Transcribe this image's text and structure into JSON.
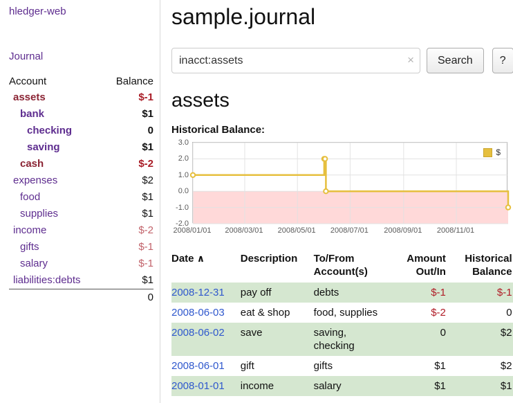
{
  "colors": {
    "purple": "#5e2d8f",
    "maroon": "#8b2434",
    "neg_strong": "#a91c26",
    "neg_soft": "#c2636b",
    "link_blue": "#2f58cd",
    "row_green": "#d5e7d0",
    "chart_line": "#e6bf3e",
    "chart_neg_fill": "#ffd9d9"
  },
  "sidebar": {
    "app_title": "hledger-web",
    "journal_link": "Journal",
    "accounts": {
      "headers": {
        "account": "Account",
        "balance": "Balance"
      },
      "rows": [
        {
          "name": "assets",
          "balance": "$-1",
          "indent": 0,
          "bold": true,
          "name_style": "maroon",
          "balance_style": "neg-strong"
        },
        {
          "name": "bank",
          "balance": "$1",
          "indent": 1,
          "bold": true,
          "name_style": "purple",
          "balance_style": "plain"
        },
        {
          "name": "checking",
          "balance": "0",
          "indent": 2,
          "bold": true,
          "name_style": "purple",
          "balance_style": "plain"
        },
        {
          "name": "saving",
          "balance": "$1",
          "indent": 2,
          "bold": true,
          "name_style": "purple",
          "balance_style": "plain"
        },
        {
          "name": "cash",
          "balance": "$-2",
          "indent": 1,
          "bold": true,
          "name_style": "maroon",
          "balance_style": "neg-strong"
        },
        {
          "name": "expenses",
          "balance": "$2",
          "indent": 0,
          "bold": false,
          "name_style": "purple",
          "balance_style": "plain"
        },
        {
          "name": "food",
          "balance": "$1",
          "indent": 1,
          "bold": false,
          "name_style": "purple",
          "balance_style": "plain"
        },
        {
          "name": "supplies",
          "balance": "$1",
          "indent": 1,
          "bold": false,
          "name_style": "purple",
          "balance_style": "plain"
        },
        {
          "name": "income",
          "balance": "$-2",
          "indent": 0,
          "bold": false,
          "name_style": "purple",
          "balance_style": "neg-soft"
        },
        {
          "name": "gifts",
          "balance": "$-1",
          "indent": 1,
          "bold": false,
          "name_style": "purple",
          "balance_style": "neg-soft"
        },
        {
          "name": "salary",
          "balance": "$-1",
          "indent": 1,
          "bold": false,
          "name_style": "purple",
          "balance_style": "neg-soft"
        },
        {
          "name": "liabilities:debts",
          "balance": "$1",
          "indent": 0,
          "bold": false,
          "name_style": "purple",
          "balance_style": "plain"
        }
      ],
      "total": "0"
    }
  },
  "main": {
    "title": "sample.journal",
    "search": {
      "value": "inacct:assets",
      "clear_icon": "×",
      "button_label": "Search",
      "help_label": "?"
    },
    "account_heading": "assets",
    "chart_title": "Historical Balance:"
  },
  "chart_data": {
    "type": "line",
    "step": true,
    "title": "Historical Balance",
    "legend": "$",
    "legend_position": "top-right",
    "grid": true,
    "ylim": [
      -2,
      3
    ],
    "yticks": [
      3.0,
      2.0,
      1.0,
      0.0,
      -1.0,
      -2.0
    ],
    "xrange": [
      "2008-01-01",
      "2008-12-31"
    ],
    "xticks": [
      {
        "date": "2008-01-01",
        "label": "2008/01/01"
      },
      {
        "date": "2008-03-01",
        "label": "2008/03/01"
      },
      {
        "date": "2008-05-01",
        "label": "2008/05/01"
      },
      {
        "date": "2008-07-01",
        "label": "2008/07/01"
      },
      {
        "date": "2008-09-01",
        "label": "2008/09/01"
      },
      {
        "date": "2008-11-01",
        "label": "2008/11/01"
      }
    ],
    "negative_region_below": 0,
    "series": [
      {
        "name": "$",
        "color": "#e6bf3e",
        "points": [
          {
            "date": "2008-01-01",
            "value": 1
          },
          {
            "date": "2008-06-01",
            "value": 2
          },
          {
            "date": "2008-06-02",
            "value": 2
          },
          {
            "date": "2008-06-03",
            "value": 0
          },
          {
            "date": "2008-12-31",
            "value": -1
          }
        ]
      }
    ]
  },
  "register": {
    "headers": {
      "date": "Date",
      "sort_icon": "∧",
      "description": "Description",
      "accounts": "To/From Account(s)",
      "amount": "Amount Out/In",
      "balance": "Historical Balance"
    },
    "rows": [
      {
        "date": "2008-12-31",
        "description": "pay off",
        "accounts": "debts",
        "amount": "$-1",
        "amount_neg": true,
        "balance": "$-1",
        "balance_neg": true,
        "highlight": true
      },
      {
        "date": "2008-06-03",
        "description": "eat & shop",
        "accounts": "food, supplies",
        "amount": "$-2",
        "amount_neg": true,
        "balance": "0",
        "balance_neg": false,
        "highlight": false
      },
      {
        "date": "2008-06-02",
        "description": "save",
        "accounts": "saving, checking",
        "amount": "0",
        "amount_neg": false,
        "balance": "$2",
        "balance_neg": false,
        "highlight": true
      },
      {
        "date": "2008-06-01",
        "description": "gift",
        "accounts": "gifts",
        "amount": "$1",
        "amount_neg": false,
        "balance": "$2",
        "balance_neg": false,
        "highlight": false
      },
      {
        "date": "2008-01-01",
        "description": "income",
        "accounts": "salary",
        "amount": "$1",
        "amount_neg": false,
        "balance": "$1",
        "balance_neg": false,
        "highlight": true
      }
    ]
  }
}
